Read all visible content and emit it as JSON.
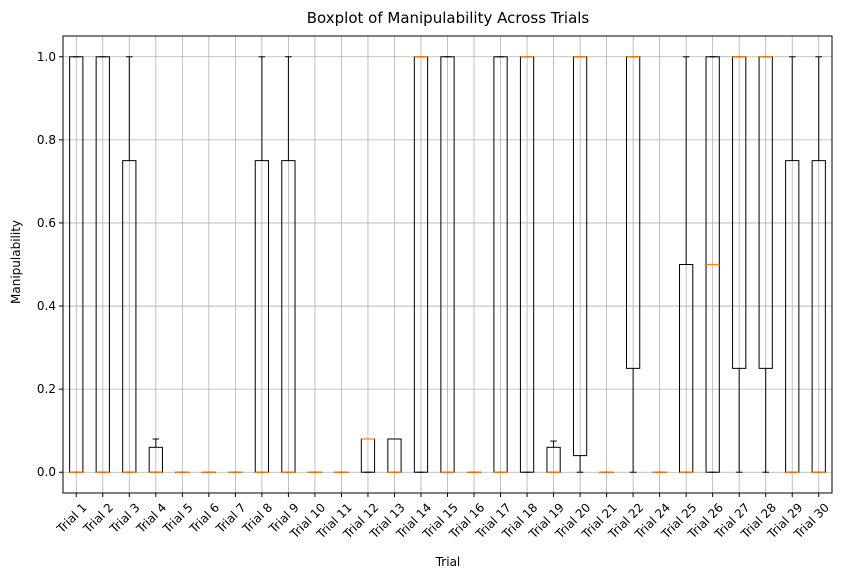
{
  "chart_data": {
    "type": "boxplot",
    "title": "Boxplot of Manipulability Across Trials",
    "xlabel": "Trial",
    "ylabel": "Manipulability",
    "ylim": [
      -0.05,
      1.05
    ],
    "yticks": [
      0.0,
      0.2,
      0.4,
      0.6,
      0.8,
      1.0
    ],
    "ytick_labels": [
      "0.0",
      "0.2",
      "0.4",
      "0.6",
      "0.8",
      "1.0"
    ],
    "grid": true,
    "colors": {
      "box": "#000000",
      "median": "#ff7f0e",
      "grid": "#b0b0b0"
    },
    "boxes": [
      {
        "label": "Trial 1",
        "whislo": 0,
        "q1": 0,
        "med": 0,
        "q3": 1,
        "whishi": 1
      },
      {
        "label": "Trial 2",
        "whislo": 0,
        "q1": 0,
        "med": 0,
        "q3": 1,
        "whishi": 1
      },
      {
        "label": "Trial 3",
        "whislo": 0,
        "q1": 0,
        "med": 0,
        "q3": 0.75,
        "whishi": 1
      },
      {
        "label": "Trial 4",
        "whislo": 0,
        "q1": 0,
        "med": 0,
        "q3": 0.06,
        "whishi": 0.08
      },
      {
        "label": "Trial 5",
        "whislo": 0,
        "q1": 0,
        "med": 0,
        "q3": 0,
        "whishi": 0
      },
      {
        "label": "Trial 6",
        "whislo": 0,
        "q1": 0,
        "med": 0,
        "q3": 0,
        "whishi": 0
      },
      {
        "label": "Trial 7",
        "whislo": 0,
        "q1": 0,
        "med": 0,
        "q3": 0,
        "whishi": 0
      },
      {
        "label": "Trial 8",
        "whislo": 0,
        "q1": 0,
        "med": 0,
        "q3": 0.75,
        "whishi": 1
      },
      {
        "label": "Trial 9",
        "whislo": 0,
        "q1": 0,
        "med": 0,
        "q3": 0.75,
        "whishi": 1
      },
      {
        "label": "Trial 10",
        "whislo": 0,
        "q1": 0,
        "med": 0,
        "q3": 0,
        "whishi": 0
      },
      {
        "label": "Trial 11",
        "whislo": 0,
        "q1": 0,
        "med": 0,
        "q3": 0,
        "whishi": 0
      },
      {
        "label": "Trial 12",
        "whislo": 0,
        "q1": 0,
        "med": 0.08,
        "q3": 0.08,
        "whishi": 0.08
      },
      {
        "label": "Trial 13",
        "whislo": 0,
        "q1": 0,
        "med": 0,
        "q3": 0.08,
        "whishi": 0.08
      },
      {
        "label": "Trial 14",
        "whislo": 0,
        "q1": 0,
        "med": 1,
        "q3": 1,
        "whishi": 1
      },
      {
        "label": "Trial 15",
        "whislo": 0,
        "q1": 0,
        "med": 0,
        "q3": 1,
        "whishi": 1
      },
      {
        "label": "Trial 16",
        "whislo": 0,
        "q1": 0,
        "med": 0,
        "q3": 0,
        "whishi": 0
      },
      {
        "label": "Trial 17",
        "whislo": 0,
        "q1": 0,
        "med": 0,
        "q3": 1,
        "whishi": 1
      },
      {
        "label": "Trial 18",
        "whislo": 0,
        "q1": 0,
        "med": 1,
        "q3": 1,
        "whishi": 1
      },
      {
        "label": "Trial 19",
        "whislo": 0,
        "q1": 0,
        "med": 0,
        "q3": 0.06,
        "whishi": 0.075
      },
      {
        "label": "Trial 20",
        "whislo": 0,
        "q1": 0.04,
        "med": 1,
        "q3": 1,
        "whishi": 1
      },
      {
        "label": "Trial 21",
        "whislo": 0,
        "q1": 0,
        "med": 0,
        "q3": 0,
        "whishi": 0
      },
      {
        "label": "Trial 22",
        "whislo": 0,
        "q1": 0.25,
        "med": 1,
        "q3": 1,
        "whishi": 1
      },
      {
        "label": "Trial 24",
        "whislo": 0,
        "q1": 0,
        "med": 0,
        "q3": 0,
        "whishi": 0
      },
      {
        "label": "Trial 25",
        "whislo": 0,
        "q1": 0,
        "med": 0,
        "q3": 0.5,
        "whishi": 1
      },
      {
        "label": "Trial 26",
        "whislo": 0,
        "q1": 0,
        "med": 0.5,
        "q3": 1,
        "whishi": 1
      },
      {
        "label": "Trial 27",
        "whislo": 0,
        "q1": 0.25,
        "med": 1,
        "q3": 1,
        "whishi": 1
      },
      {
        "label": "Trial 28",
        "whislo": 0,
        "q1": 0.25,
        "med": 1,
        "q3": 1,
        "whishi": 1
      },
      {
        "label": "Trial 29",
        "whislo": 0,
        "q1": 0,
        "med": 0,
        "q3": 0.75,
        "whishi": 1
      },
      {
        "label": "Trial 30",
        "whislo": 0,
        "q1": 0,
        "med": 0,
        "q3": 0.75,
        "whishi": 1
      }
    ]
  }
}
